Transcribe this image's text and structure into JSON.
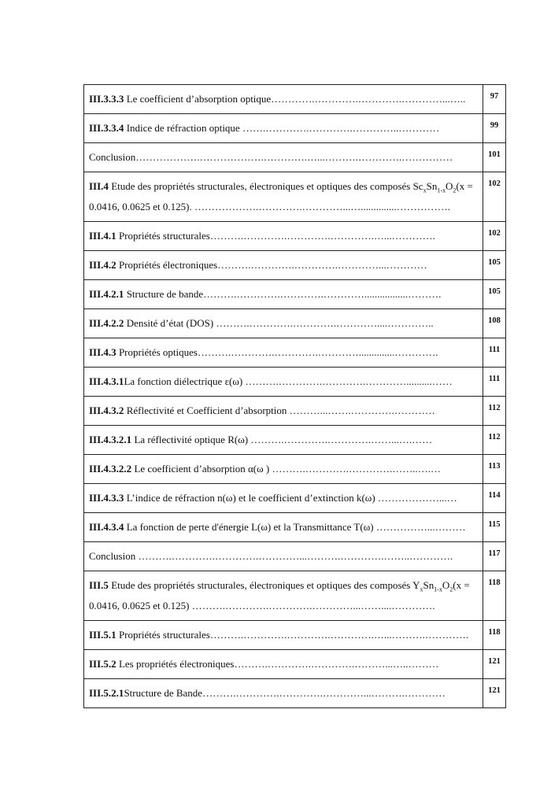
{
  "table": {
    "rows": [
      {
        "number": "III.3.3.3",
        "title": " Le coefficient d’absorption optique",
        "leader": "………….………….………….…………...…..",
        "page": "97"
      },
      {
        "number": "III.3.3.4",
        "title": " Indice de réfraction optique ",
        "leader": "…….………….………….…………..…………",
        "page": "99"
      },
      {
        "title": "Conclusion",
        "leader": "……………….……………….………….…...……….………….……………",
        "page": "101"
      },
      {
        "number": "III.4",
        "title": [
          {
            "text": " Etude des propriétés structurales, électroniques et optiques des composés Sc"
          },
          {
            "text": "x",
            "sub": true
          },
          {
            "text": "Sn"
          },
          {
            "text": "1-x",
            "sub": true
          },
          {
            "text": "O"
          },
          {
            "text": "2",
            "sub": true
          },
          {
            "text": "(x = 0.0416, 0.0625 et 0.125). "
          }
        ],
        "leader": "……………….………….…………...…..............…………….",
        "page": "102"
      },
      {
        "number": "III.4.1",
        "title": " Propriétés structurales",
        "leader": "……….………….………….………….…...………….",
        "page": "102"
      },
      {
        "number": "III.4.2",
        "title": " Propriétés électroniques",
        "leader": "……….………….………….…………...…………",
        "page": "105"
      },
      {
        "number": "III.4.2.1",
        "title": " Structure de bande",
        "leader": "……….………….………….………….................……….",
        "page": "105"
      },
      {
        "number": "III.4.2.2",
        "title": " Densité d’état (DOS) ",
        "leader": "……….………….………….…………....…………..",
        "page": "108"
      },
      {
        "number": "III.4.3",
        "title": " Propriétés optiques",
        "leader": "……….………….………….…………..............………….",
        "page": "111"
      },
      {
        "number": "III.4.3.1",
        "title": "La fonction diélectrique ε(ω) ",
        "leader": "……….………….………….…………..........……",
        "page": "111"
      },
      {
        "number": "III.4.3.2",
        "title": " Réflectivité et Coefficient d’absorption ",
        "leader": "………...…….………….…………",
        "page": "112"
      },
      {
        "number": "III.4.3.2.1",
        "title": " La réflectivité optique R(ω) ",
        "leader": "……….………….………….……...….……",
        "page": "112"
      },
      {
        "number": "III.4.3.2.2",
        "title": " Le coefficient d’absorption α(ω ) ",
        "leader": "……….………….………….……..….…",
        "page": "113"
      },
      {
        "number": "III.4.3.3",
        "title": " L’indice de réfraction n(ω)  et le coefficient d’extinction k(ω) ",
        "leader": "………………...…",
        "page": "114"
      },
      {
        "number": "III.4.3.4",
        "title": " La fonction de perte d'énergie L(ω) et la Transmittance T(ω) ",
        "leader": "……………...………",
        "page": "115"
      },
      {
        "title": "Conclusion ",
        "leader": "……….………….………….…………...……….………….……..………….",
        "page": "117"
      },
      {
        "number": "III.5",
        "title": [
          {
            "text": " Etude des propriétés structurales, électroniques et optiques des composés Y"
          },
          {
            "text": "x",
            "sub": true
          },
          {
            "text": "Sn"
          },
          {
            "text": "1-x",
            "sub": true
          },
          {
            "text": "O"
          },
          {
            "text": "2",
            "sub": true
          },
          {
            "text": "(x = 0.0416, 0.0625 et 0.125) "
          }
        ],
        "leader": "……….………….………….…………...……....………….",
        "page": "118"
      },
      {
        "number": "III.5.1",
        "title": " Propriétés structurales",
        "leader": "……….………….………….………….…...……….………….",
        "page": "118"
      },
      {
        "number": "III.5.2",
        "title": " Les propriétés électroniques",
        "leader": "……….………….………….………...…..………",
        "page": "121"
      },
      {
        "number": "III.5.2.1",
        "title": "Structure de Bande",
        "leader": "……….………….………….…………...……….…………",
        "page": "121"
      }
    ]
  }
}
